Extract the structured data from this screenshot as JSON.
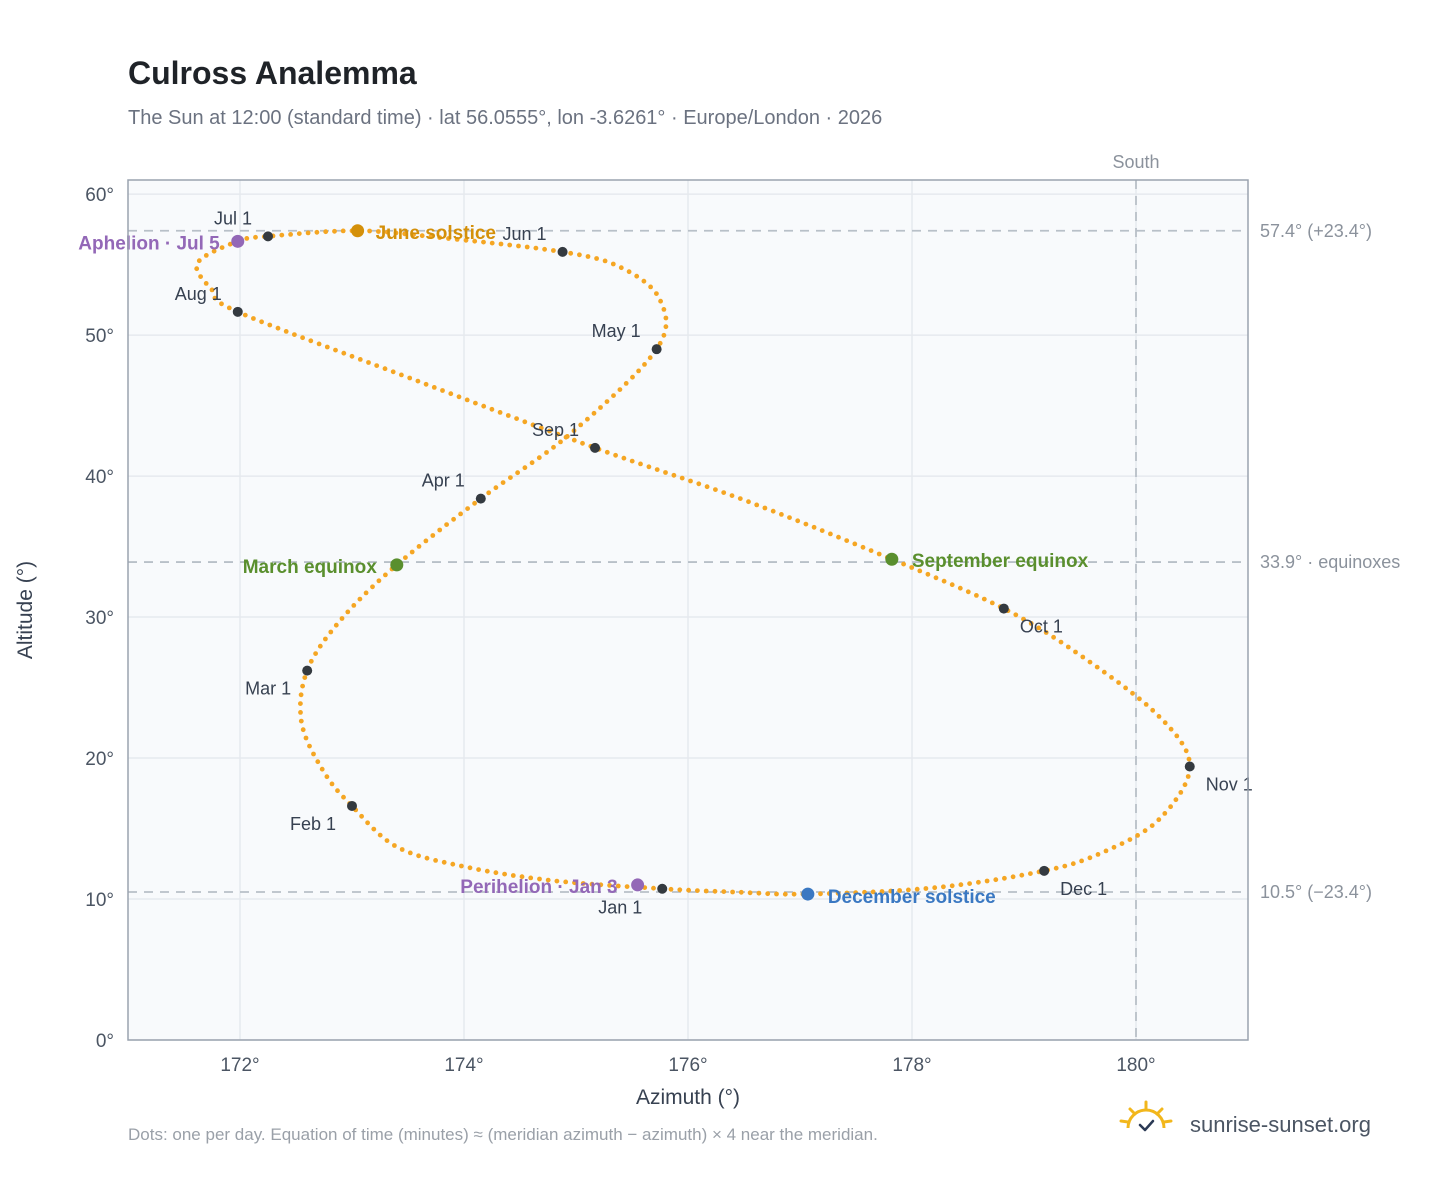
{
  "page": {
    "title": "Culross Analemma",
    "subtitle": "The Sun at 12:00 (standard time) · lat 56.0555°, lon -3.6261° · Europe/London · 2026",
    "footnote": "Dots: one per day. Equation of time (minutes) ≈ (meridian azimuth − azimuth) × 4 near the meridian.",
    "brand": "sunrise-sunset.org",
    "brand_icon": "sun-check-icon"
  },
  "chart_data": {
    "type": "scatter",
    "xlabel": "Azimuth (°)",
    "ylabel": "Altitude (°)",
    "xlim": [
      171,
      181
    ],
    "ylim": [
      0,
      61
    ],
    "x_ticks": [
      {
        "value": 172,
        "label": "172°"
      },
      {
        "value": 174,
        "label": "174°"
      },
      {
        "value": 176,
        "label": "176°"
      },
      {
        "value": 178,
        "label": "178°"
      },
      {
        "value": 180,
        "label": "180°"
      }
    ],
    "y_ticks": [
      {
        "value": 0,
        "label": "0°"
      },
      {
        "value": 10,
        "label": "10°"
      },
      {
        "value": 20,
        "label": "20°"
      },
      {
        "value": 30,
        "label": "30°"
      },
      {
        "value": 40,
        "label": "40°"
      },
      {
        "value": 50,
        "label": "50°"
      },
      {
        "value": 60,
        "label": "60°"
      }
    ],
    "grid": true,
    "colors": {
      "path": "#f5a623",
      "month": "#343a40",
      "june": "#d4900a",
      "equinox": "#5a8f2e",
      "december": "#3a78c2",
      "apsis": "#9368b7",
      "reference": "#b8c0c8",
      "grid": "#e6e9ee",
      "plot_bg": "#f8fafc",
      "frame": "#9aa3af"
    },
    "meridian": {
      "azimuth": 180,
      "label": "South"
    },
    "reference_lines": [
      {
        "altitude": 57.4,
        "label": "57.4° (+23.4°)"
      },
      {
        "altitude": 33.9,
        "label": "33.9° · equinoxes"
      },
      {
        "altitude": 10.5,
        "label": "10.5° (−23.4°)"
      }
    ],
    "path_anchors": [
      {
        "x": 175.77,
        "y": 10.73
      },
      {
        "x": 174.8,
        "y": 11.3
      },
      {
        "x": 174.0,
        "y": 12.3
      },
      {
        "x": 173.4,
        "y": 13.7
      },
      {
        "x": 173.0,
        "y": 16.6
      },
      {
        "x": 172.75,
        "y": 19.0
      },
      {
        "x": 172.55,
        "y": 22.5
      },
      {
        "x": 172.6,
        "y": 26.2
      },
      {
        "x": 172.9,
        "y": 29.8
      },
      {
        "x": 173.4,
        "y": 33.7
      },
      {
        "x": 174.15,
        "y": 38.4
      },
      {
        "x": 174.95,
        "y": 43.0
      },
      {
        "x": 175.72,
        "y": 49.0
      },
      {
        "x": 175.75,
        "y": 52.5
      },
      {
        "x": 175.4,
        "y": 54.8
      },
      {
        "x": 174.88,
        "y": 55.9
      },
      {
        "x": 173.8,
        "y": 56.9
      },
      {
        "x": 173.05,
        "y": 57.4
      },
      {
        "x": 172.25,
        "y": 57.0
      },
      {
        "x": 171.98,
        "y": 56.65
      },
      {
        "x": 171.62,
        "y": 55.1
      },
      {
        "x": 171.75,
        "y": 53.2
      },
      {
        "x": 171.98,
        "y": 51.65
      },
      {
        "x": 173.5,
        "y": 47.0
      },
      {
        "x": 175.17,
        "y": 42.0
      },
      {
        "x": 176.5,
        "y": 38.3
      },
      {
        "x": 177.82,
        "y": 34.1
      },
      {
        "x": 178.82,
        "y": 30.6
      },
      {
        "x": 179.5,
        "y": 27.3
      },
      {
        "x": 180.2,
        "y": 23.0
      },
      {
        "x": 180.48,
        "y": 19.4
      },
      {
        "x": 180.2,
        "y": 15.6
      },
      {
        "x": 179.7,
        "y": 13.3
      },
      {
        "x": 179.18,
        "y": 12.0
      },
      {
        "x": 178.2,
        "y": 10.8
      },
      {
        "x": 177.07,
        "y": 10.35
      },
      {
        "x": 176.4,
        "y": 10.5
      },
      {
        "x": 175.77,
        "y": 10.73
      }
    ],
    "months": [
      {
        "label": "Jan 1",
        "x": 175.77,
        "y": 10.73,
        "anchor": "middle",
        "dx": -42,
        "dy": 25
      },
      {
        "label": "Feb 1",
        "x": 173.0,
        "y": 16.6,
        "anchor": "end",
        "dx": -16,
        "dy": 24
      },
      {
        "label": "Mar 1",
        "x": 172.6,
        "y": 26.2,
        "anchor": "end",
        "dx": -16,
        "dy": 24
      },
      {
        "label": "Apr 1",
        "x": 174.15,
        "y": 38.4,
        "anchor": "end",
        "dx": -16,
        "dy": -12
      },
      {
        "label": "May 1",
        "x": 175.72,
        "y": 49.0,
        "anchor": "end",
        "dx": -16,
        "dy": -12
      },
      {
        "label": "Jun 1",
        "x": 174.88,
        "y": 55.9,
        "anchor": "end",
        "dx": -16,
        "dy": -12
      },
      {
        "label": "Jul 1",
        "x": 172.25,
        "y": 57.0,
        "anchor": "end",
        "dx": -16,
        "dy": -12
      },
      {
        "label": "Aug 1",
        "x": 171.98,
        "y": 51.65,
        "anchor": "end",
        "dx": -16,
        "dy": -12
      },
      {
        "label": "Sep 1",
        "x": 175.17,
        "y": 42.0,
        "anchor": "end",
        "dx": -16,
        "dy": -12
      },
      {
        "label": "Oct 1",
        "x": 178.82,
        "y": 30.6,
        "anchor": "start",
        "dx": 16,
        "dy": 24
      },
      {
        "label": "Nov 1",
        "x": 180.48,
        "y": 19.4,
        "anchor": "start",
        "dx": 16,
        "dy": 24
      },
      {
        "label": "Dec 1",
        "x": 179.18,
        "y": 12.0,
        "anchor": "start",
        "dx": 16,
        "dy": 24
      }
    ],
    "events": [
      {
        "label": "June solstice",
        "x": 173.05,
        "y": 57.4,
        "color": "#d4900a",
        "anchor": "start",
        "dx": 18,
        "dy": 8
      },
      {
        "label": "March equinox",
        "x": 173.4,
        "y": 33.7,
        "color": "#5a8f2e",
        "anchor": "end",
        "dx": -20,
        "dy": 8
      },
      {
        "label": "September equinox",
        "x": 177.82,
        "y": 34.1,
        "color": "#5a8f2e",
        "anchor": "start",
        "dx": 20,
        "dy": 8
      },
      {
        "label": "December solstice",
        "x": 177.07,
        "y": 10.35,
        "color": "#3a78c2",
        "anchor": "start",
        "dx": 20,
        "dy": 9
      },
      {
        "label": "Perihelion · Jan 3",
        "x": 175.55,
        "y": 11.0,
        "color": "#9368b7",
        "anchor": "end",
        "dx": -20,
        "dy": 8
      },
      {
        "label": "Aphelion · Jul 5",
        "x": 171.98,
        "y": 56.65,
        "color": "#9368b7",
        "anchor": "end",
        "dx": -18,
        "dy": 8
      }
    ]
  }
}
